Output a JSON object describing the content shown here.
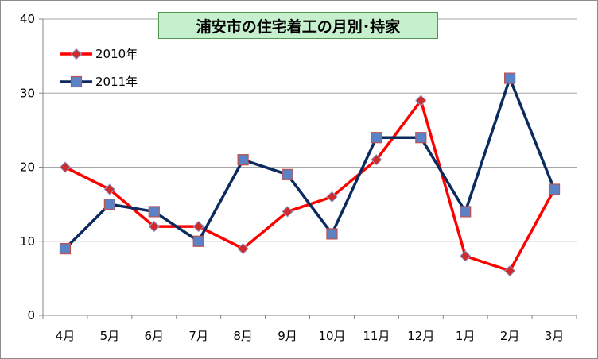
{
  "chart_data": {
    "type": "line",
    "title": "浦安市の住宅着工の月別･持家",
    "categories": [
      "4月",
      "5月",
      "6月",
      "7月",
      "8月",
      "9月",
      "10月",
      "11月",
      "12月",
      "1月",
      "2月",
      "3月"
    ],
    "ylim": [
      0,
      40
    ],
    "yticks": [
      0,
      10,
      20,
      30,
      40
    ],
    "grid": true,
    "legend_position": "top-left",
    "series": [
      {
        "name": "2010年",
        "color": "#ff0000",
        "marker": "diamond",
        "marker_color": "#ce2c2c",
        "values": [
          20,
          17,
          12,
          12,
          9,
          14,
          16,
          21,
          29,
          8,
          6,
          17
        ]
      },
      {
        "name": "2011年",
        "color": "#0b2a5e",
        "marker": "square",
        "marker_color": "#5b82c4",
        "values": [
          9,
          15,
          14,
          10,
          21,
          19,
          11,
          24,
          24,
          14,
          32,
          17
        ]
      }
    ]
  }
}
